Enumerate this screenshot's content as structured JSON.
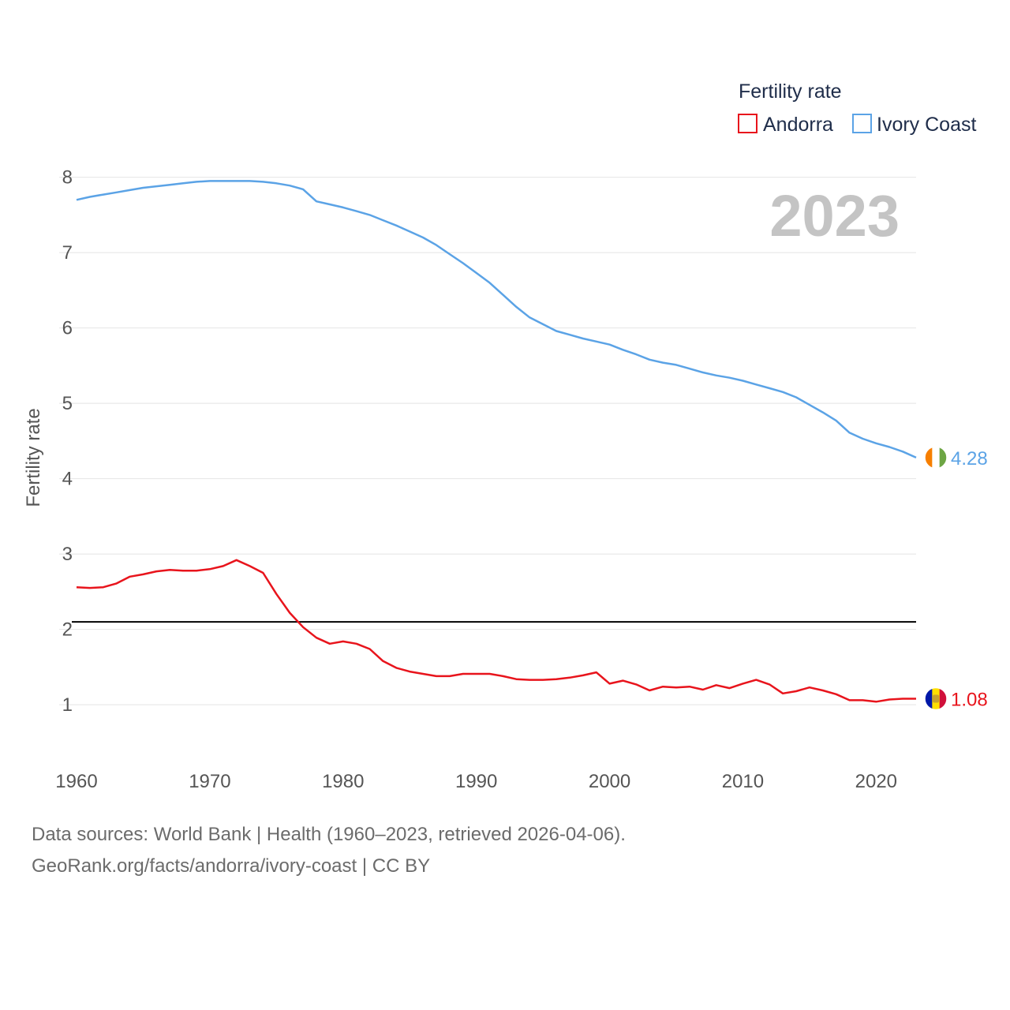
{
  "chart_data": {
    "type": "line",
    "year_label": "2023",
    "ylabel": "Fertility rate",
    "xlabel": "",
    "xlim": [
      1960,
      2023
    ],
    "ylim": [
      0.3,
      8.3
    ],
    "x_ticks": [
      1960,
      1970,
      1980,
      1990,
      2000,
      2010,
      2020
    ],
    "y_ticks": [
      1,
      2,
      3,
      4,
      5,
      6,
      7,
      8
    ],
    "reference_line": 2.1,
    "legend": {
      "title": "Fertility rate",
      "position": "top-right",
      "entries": [
        "Andorra",
        "Ivory Coast"
      ]
    },
    "series": [
      {
        "name": "Ivory Coast",
        "color": "#5ba3e6",
        "end_label": "4.28",
        "x": [
          1960,
          1961,
          1962,
          1963,
          1964,
          1965,
          1966,
          1967,
          1968,
          1969,
          1970,
          1971,
          1972,
          1973,
          1974,
          1975,
          1976,
          1977,
          1978,
          1979,
          1980,
          1981,
          1982,
          1983,
          1984,
          1985,
          1986,
          1987,
          1988,
          1989,
          1990,
          1991,
          1992,
          1993,
          1994,
          1995,
          1996,
          1997,
          1998,
          1999,
          2000,
          2001,
          2002,
          2003,
          2004,
          2005,
          2006,
          2007,
          2008,
          2009,
          2010,
          2011,
          2012,
          2013,
          2014,
          2015,
          2016,
          2017,
          2018,
          2019,
          2020,
          2021,
          2022,
          2023
        ],
        "values": [
          7.7,
          7.74,
          7.77,
          7.8,
          7.83,
          7.86,
          7.88,
          7.9,
          7.92,
          7.94,
          7.95,
          7.95,
          7.95,
          7.95,
          7.94,
          7.92,
          7.89,
          7.84,
          7.68,
          7.64,
          7.6,
          7.55,
          7.5,
          7.43,
          7.36,
          7.28,
          7.2,
          7.1,
          6.98,
          6.86,
          6.73,
          6.6,
          6.44,
          6.28,
          6.14,
          6.05,
          5.96,
          5.91,
          5.86,
          5.82,
          5.78,
          5.71,
          5.65,
          5.58,
          5.54,
          5.51,
          5.46,
          5.41,
          5.37,
          5.34,
          5.3,
          5.25,
          5.2,
          5.15,
          5.08,
          4.98,
          4.88,
          4.77,
          4.61,
          4.53,
          4.47,
          4.42,
          4.36,
          4.28
        ]
      },
      {
        "name": "Andorra",
        "color": "#e8141c",
        "end_label": "1.08",
        "x": [
          1960,
          1961,
          1962,
          1963,
          1964,
          1965,
          1966,
          1967,
          1968,
          1969,
          1970,
          1971,
          1972,
          1973,
          1974,
          1975,
          1976,
          1977,
          1978,
          1979,
          1980,
          1981,
          1982,
          1983,
          1984,
          1985,
          1986,
          1987,
          1988,
          1989,
          1990,
          1991,
          1992,
          1993,
          1994,
          1995,
          1996,
          1997,
          1998,
          1999,
          2000,
          2001,
          2002,
          2003,
          2004,
          2005,
          2006,
          2007,
          2008,
          2009,
          2010,
          2011,
          2012,
          2013,
          2014,
          2015,
          2016,
          2017,
          2018,
          2019,
          2020,
          2021,
          2022,
          2023
        ],
        "values": [
          2.56,
          2.55,
          2.56,
          2.61,
          2.7,
          2.73,
          2.77,
          2.79,
          2.78,
          2.78,
          2.8,
          2.84,
          2.92,
          2.84,
          2.75,
          2.47,
          2.22,
          2.03,
          1.89,
          1.81,
          1.84,
          1.81,
          1.74,
          1.58,
          1.49,
          1.44,
          1.41,
          1.38,
          1.38,
          1.41,
          1.41,
          1.41,
          1.38,
          1.34,
          1.33,
          1.33,
          1.34,
          1.36,
          1.39,
          1.43,
          1.28,
          1.32,
          1.27,
          1.19,
          1.24,
          1.23,
          1.24,
          1.2,
          1.26,
          1.22,
          1.28,
          1.33,
          1.27,
          1.15,
          1.18,
          1.23,
          1.19,
          1.14,
          1.06,
          1.06,
          1.04,
          1.07,
          1.08,
          1.08
        ]
      }
    ],
    "flags": {
      "Ivory Coast": [
        "#f77f00",
        "#ffffff",
        "#6da544"
      ],
      "Andorra": [
        "#0018a8",
        "#fedf00",
        "#d0103a"
      ]
    }
  },
  "footer": {
    "line1": "Data sources: World Bank | Health (1960–2023, retrieved 2026-04-06).",
    "line2": "GeoRank.org/facts/andorra/ivory-coast | CC BY"
  }
}
